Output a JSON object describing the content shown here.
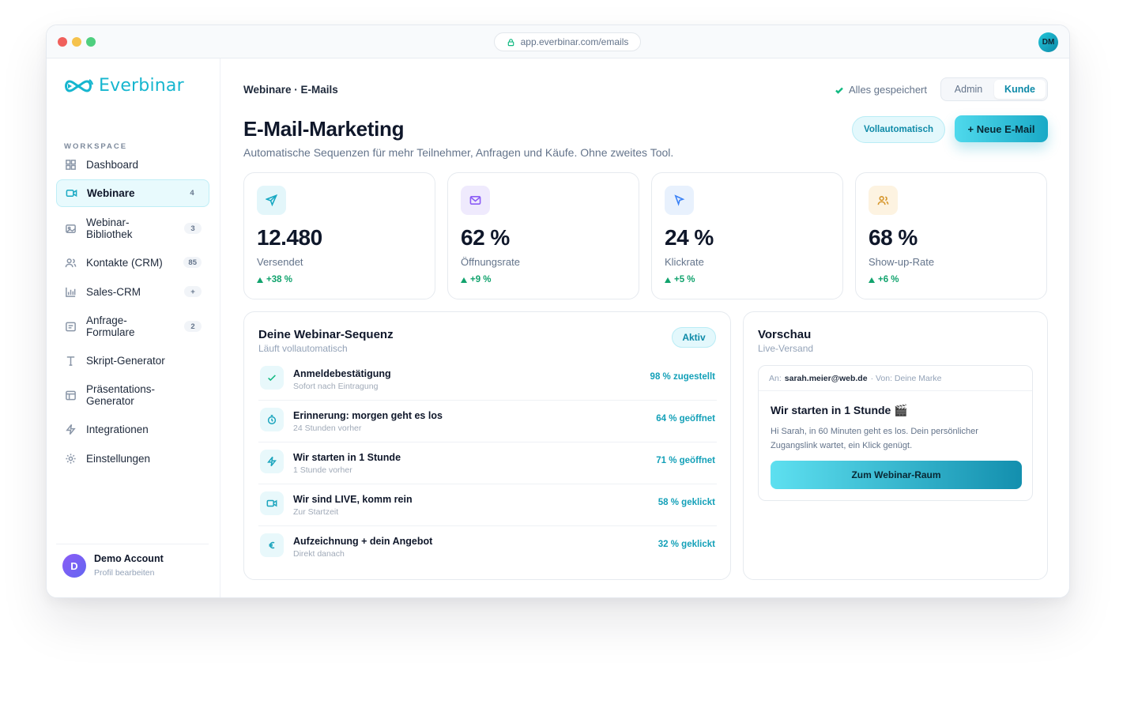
{
  "browser": {
    "url": "app.everbinar.com/emails",
    "user_initials": "DM"
  },
  "brand": {
    "name": "Everbinar",
    "accent": "#16b6cf"
  },
  "sidebar": {
    "workspace_label": "WORKSPACE",
    "items": [
      {
        "label": "Dashboard",
        "badge": "",
        "icon": "grid-icon"
      },
      {
        "label": "Webinare",
        "badge": "4",
        "icon": "video-icon",
        "active": true
      },
      {
        "label": "Webinar-\nBibliothek",
        "badge": "3",
        "icon": "image-icon"
      },
      {
        "label": "Kontakte (CRM)",
        "badge": "85",
        "icon": "users-icon"
      },
      {
        "label": "Sales-CRM",
        "badge": "+",
        "icon": "bar-chart-icon"
      },
      {
        "label": "Anfrage-\nFormulare",
        "badge": "2",
        "icon": "form-icon"
      },
      {
        "label": "Skript-Generator",
        "badge": "",
        "icon": "text-icon"
      },
      {
        "label": "Präsentations-\nGenerator",
        "badge": "",
        "icon": "layout-icon"
      },
      {
        "label": "Integrationen",
        "badge": "",
        "icon": "bolt-icon"
      },
      {
        "label": "Einstellungen",
        "badge": "",
        "icon": "gear-icon"
      }
    ],
    "profile": {
      "initial": "D",
      "name": "Demo Account",
      "sub": "Profil bearbeiten"
    }
  },
  "header": {
    "breadcrumb": "Webinare · E-Mails",
    "saved_status": "Alles gespeichert",
    "view_toggle": {
      "options": [
        "Admin",
        "Kunde"
      ],
      "selected": "Kunde"
    }
  },
  "page": {
    "title": "E-Mail-Marketing",
    "subtitle": "Automatische Sequenzen für mehr Teilnehmer, Anfragen und Käufe. Ohne zweites Tool.",
    "btn_auto": "Vollautomatisch",
    "btn_new": "+ Neue E-Mail"
  },
  "stats": [
    {
      "value": "12.480",
      "label": "Versendet",
      "delta": "+38 %",
      "icon": "send-icon",
      "icon_color": "#19a9c3",
      "icon_bg": "#e3f6fa"
    },
    {
      "value": "62 %",
      "label": "Öffnungsrate",
      "delta": "+9 %",
      "icon": "mail-icon",
      "icon_color": "#8b5cf6",
      "icon_bg": "#efeafd"
    },
    {
      "value": "24 %",
      "label": "Klickrate",
      "delta": "+5 %",
      "icon": "cursor-icon",
      "icon_color": "#3b82f6",
      "icon_bg": "#e8f1fd"
    },
    {
      "value": "68 %",
      "label": "Show-up-Rate",
      "delta": "+6 %",
      "icon": "people-icon",
      "icon_color": "#d6962c",
      "icon_bg": "#fdf3e1"
    }
  ],
  "sequence": {
    "title": "Deine Webinar-Sequenz",
    "subtitle": "Läuft vollautomatisch",
    "status": "Aktiv",
    "rows": [
      {
        "title": "Anmeldebestätigung",
        "sub": "Sofort nach Eintragung",
        "metric": "98 % zugestellt",
        "icon": "check-icon"
      },
      {
        "title": "Erinnerung: morgen geht es los",
        "sub": "24 Stunden vorher",
        "metric": "64 % geöffnet",
        "icon": "timer-icon"
      },
      {
        "title": "Wir starten in 1 Stunde",
        "sub": "1 Stunde vorher",
        "metric": "71 % geöffnet",
        "icon": "bolt-icon"
      },
      {
        "title": "Wir sind LIVE, komm rein",
        "sub": "Zur Startzeit",
        "metric": "58 % geklickt",
        "icon": "video-icon"
      },
      {
        "title": "Aufzeichnung + dein Angebot",
        "sub": "Direkt danach",
        "metric": "32 % geklickt",
        "icon": "euro-icon"
      }
    ]
  },
  "preview": {
    "title": "Vorschau",
    "subtitle": "Live-Versand",
    "to_label": "An:",
    "to": "sarah.meier@web.de",
    "from": "· Von: Deine Marke",
    "subject": "Wir starten in 1 Stunde 🎬",
    "body": "Hi Sarah, in 60 Minuten geht es los. Dein persönlicher Zugangslink wartet, ein Klick genügt.",
    "cta": "Zum Webinar-Raum"
  }
}
